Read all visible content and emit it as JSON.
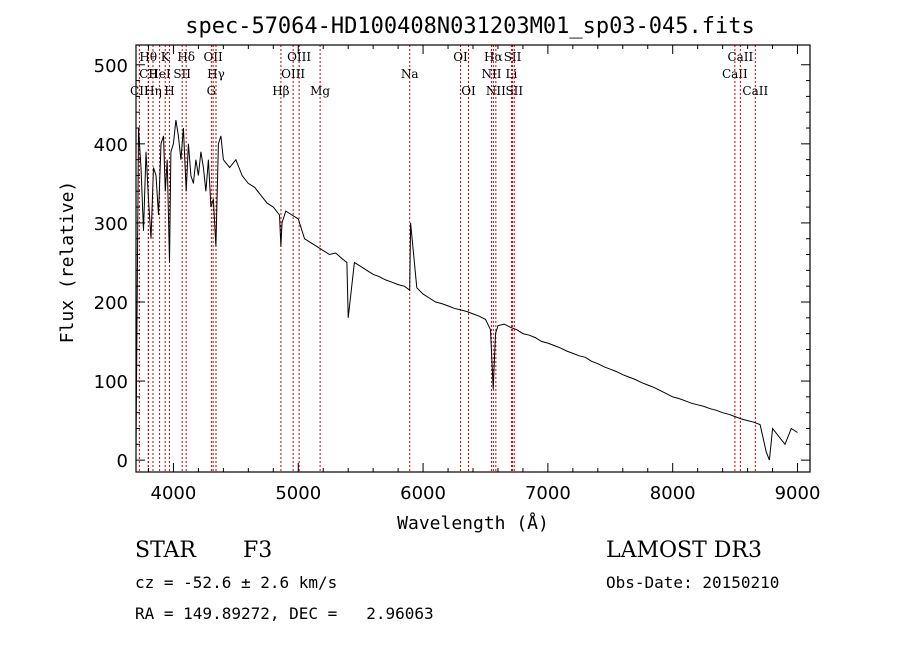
{
  "chart_data": {
    "type": "line",
    "title": "spec-57064-HD100408N031203M01_sp03-045.fits",
    "xlabel": "Wavelength (Å)",
    "ylabel": "Flux (relative)",
    "xlim": [
      3700,
      9100
    ],
    "ylim": [
      -15,
      525
    ],
    "xticks": [
      4000,
      5000,
      6000,
      7000,
      8000,
      9000
    ],
    "yticks": [
      0,
      100,
      200,
      300,
      400,
      500
    ],
    "grid": false,
    "line_color": "#000000",
    "marker_color": "#cc0000",
    "series": [
      {
        "x": [
          3700,
          3720,
          3740,
          3760,
          3780,
          3800,
          3820,
          3840,
          3860,
          3880,
          3900,
          3920,
          3935,
          3950,
          3968,
          3980,
          4000,
          4020,
          4040,
          4060,
          4080,
          4102,
          4120,
          4140,
          4160,
          4180,
          4200,
          4220,
          4240,
          4260,
          4280,
          4300,
          4320,
          4340,
          4360,
          4380,
          4400,
          4450,
          4500,
          4550,
          4600,
          4650,
          4700,
          4750,
          4800,
          4850,
          4861,
          4870,
          4900,
          4950,
          5000,
          5050,
          5100,
          5150,
          5200,
          5250,
          5300,
          5350,
          5390,
          5400,
          5450,
          5500,
          5550,
          5600,
          5650,
          5700,
          5750,
          5800,
          5850,
          5893,
          5900,
          5950,
          6000,
          6050,
          6100,
          6150,
          6200,
          6250,
          6300,
          6350,
          6400,
          6450,
          6500,
          6540,
          6562,
          6580,
          6600,
          6650,
          6700,
          6750,
          6800,
          6850,
          6900,
          6950,
          7000,
          7050,
          7100,
          7150,
          7200,
          7250,
          7300,
          7350,
          7400,
          7450,
          7500,
          7550,
          7600,
          7650,
          7700,
          7750,
          7800,
          7850,
          7900,
          7950,
          8000,
          8050,
          8100,
          8150,
          8200,
          8250,
          8300,
          8350,
          8400,
          8450,
          8500,
          8550,
          8600,
          8650,
          8700,
          8750,
          8775,
          8800,
          8850,
          8900,
          8950,
          9000
        ],
        "y": [
          10,
          420,
          370,
          290,
          390,
          330,
          280,
          370,
          360,
          310,
          400,
          410,
          340,
          380,
          250,
          390,
          400,
          430,
          410,
          380,
          420,
          340,
          400,
          360,
          350,
          380,
          360,
          390,
          370,
          340,
          380,
          320,
          330,
          270,
          400,
          410,
          380,
          370,
          380,
          360,
          350,
          345,
          335,
          325,
          320,
          310,
          270,
          300,
          315,
          310,
          305,
          280,
          275,
          270,
          265,
          260,
          262,
          255,
          250,
          180,
          250,
          245,
          240,
          235,
          232,
          228,
          225,
          222,
          220,
          215,
          300,
          218,
          210,
          205,
          200,
          198,
          195,
          192,
          190,
          188,
          185,
          182,
          178,
          165,
          90,
          160,
          170,
          172,
          168,
          165,
          160,
          158,
          155,
          150,
          148,
          145,
          142,
          138,
          135,
          132,
          130,
          125,
          122,
          118,
          115,
          112,
          108,
          105,
          102,
          98,
          95,
          92,
          88,
          84,
          80,
          78,
          75,
          72,
          70,
          68,
          65,
          63,
          60,
          58,
          55,
          52,
          50,
          48,
          45,
          10,
          0,
          40,
          30,
          20,
          40,
          35
        ]
      }
    ],
    "spectral_lines": [
      {
        "label": "CII",
        "x": 3727,
        "row": 3
      },
      {
        "label": "Hθ",
        "x": 3798,
        "row": 1
      },
      {
        "label": "CII",
        "x": 3800,
        "row": 2
      },
      {
        "label": "Hη",
        "x": 3836,
        "row": 3
      },
      {
        "label": "HeI",
        "x": 3889,
        "row": 2
      },
      {
        "label": "K",
        "x": 3934,
        "row": 1
      },
      {
        "label": "H",
        "x": 3968,
        "row": 3
      },
      {
        "label": "SII",
        "x": 4070,
        "row": 2
      },
      {
        "label": "Hδ",
        "x": 4102,
        "row": 1
      },
      {
        "label": "G",
        "x": 4304,
        "row": 3
      },
      {
        "label": "OII",
        "x": 4318,
        "row": 1
      },
      {
        "label": "Hγ",
        "x": 4341,
        "row": 2
      },
      {
        "label": "Hβ",
        "x": 4861,
        "row": 3
      },
      {
        "label": "OIII",
        "x": 4959,
        "row": 2
      },
      {
        "label": "OIII",
        "x": 5007,
        "row": 1
      },
      {
        "label": "Mg",
        "x": 5175,
        "row": 3
      },
      {
        "label": "Na",
        "x": 5893,
        "row": 2
      },
      {
        "label": "OI",
        "x": 6300,
        "row": 1
      },
      {
        "label": "OI",
        "x": 6364,
        "row": 3
      },
      {
        "label": "NII",
        "x": 6548,
        "row": 2
      },
      {
        "label": "Hα",
        "x": 6563,
        "row": 1
      },
      {
        "label": "NII",
        "x": 6583,
        "row": 3
      },
      {
        "label": "SII",
        "x": 6717,
        "row": 1
      },
      {
        "label": "Li",
        "x": 6708,
        "row": 2
      },
      {
        "label": "SII",
        "x": 6731,
        "row": 3
      },
      {
        "label": "CaII",
        "x": 8498,
        "row": 2
      },
      {
        "label": "CaII",
        "x": 8542,
        "row": 1
      },
      {
        "label": "CaII",
        "x": 8662,
        "row": 3
      }
    ]
  },
  "info": {
    "class": "STAR",
    "subclass": "F3",
    "survey": "LAMOST DR3",
    "cz": "cz = -52.6 ± 2.6 km/s",
    "obs_date": "Obs-Date: 20150210",
    "radec": "RA = 149.89272, DEC =   2.96063"
  }
}
